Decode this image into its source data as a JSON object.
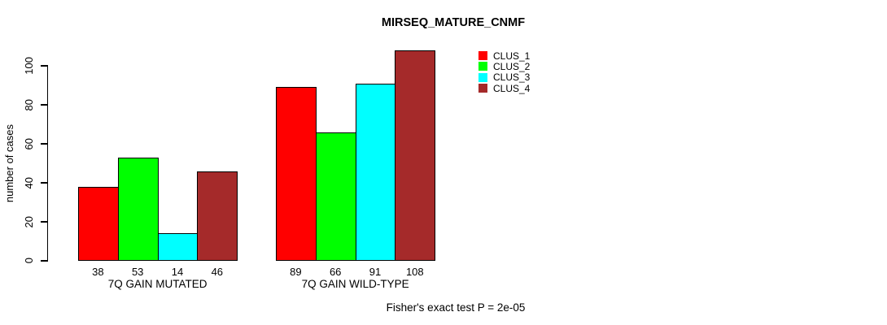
{
  "chart_data": {
    "type": "bar",
    "title": "MIRSEQ_MATURE_CNMF",
    "ylabel": "number of cases",
    "xlabel": "",
    "footer": "Fisher's exact test P = 2e-05",
    "yticks": [
      0,
      20,
      40,
      60,
      80,
      100
    ],
    "ylim": [
      0,
      110
    ],
    "grid": false,
    "legend_position": "top-right",
    "categories": [
      "7Q GAIN MUTATED",
      "7Q GAIN WILD-TYPE"
    ],
    "series": [
      {
        "name": "CLUS_1",
        "color": "#ff0000",
        "values": [
          38,
          89
        ]
      },
      {
        "name": "CLUS_2",
        "color": "#00ff00",
        "values": [
          53,
          66
        ]
      },
      {
        "name": "CLUS_3",
        "color": "#00ffff",
        "values": [
          14,
          91
        ]
      },
      {
        "name": "CLUS_4",
        "color": "#a52a2a",
        "values": [
          46,
          108
        ]
      }
    ]
  }
}
